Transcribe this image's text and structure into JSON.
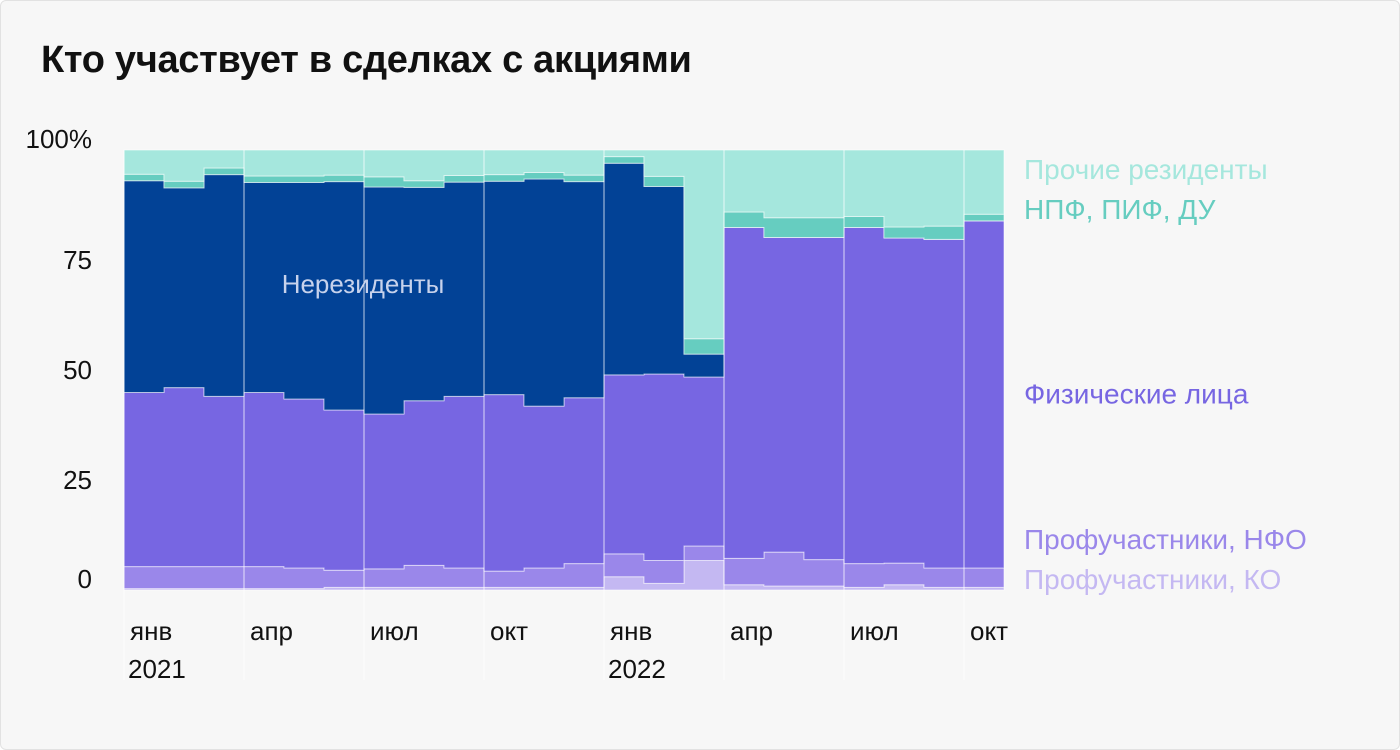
{
  "title": "Кто участвует в сделках с акциями",
  "colors": {
    "retail_ko": "#c4b8f2",
    "retail_nfo": "#9a87ea",
    "individuals": "#7766e2",
    "nonresidents": "#024296",
    "funds": "#66cdc0",
    "other": "#a5e7dd",
    "background": "#f7f7f7",
    "text": "#111111"
  },
  "chart_data": {
    "type": "area",
    "stacking": "percent",
    "step": true,
    "title": "Кто участвует в сделках с акциями",
    "ylim": [
      0,
      100
    ],
    "yticks": [
      0,
      25,
      50,
      75,
      100
    ],
    "ytick_labels": [
      "0",
      "25",
      "50",
      "75",
      "100%"
    ],
    "xtick_labels": [
      {
        "month": "янв",
        "year": "2021"
      },
      {
        "month": "апр",
        "year": ""
      },
      {
        "month": "июл",
        "year": ""
      },
      {
        "month": "окт",
        "year": ""
      },
      {
        "month": "янв",
        "year": "2022"
      },
      {
        "month": "апр",
        "year": ""
      },
      {
        "month": "июл",
        "year": ""
      },
      {
        "month": "окт",
        "year": ""
      }
    ],
    "periods": [
      "2021-01",
      "2021-02",
      "2021-03",
      "2021-04",
      "2021-05",
      "2021-06",
      "2021-07",
      "2021-08",
      "2021-09",
      "2021-10",
      "2021-11",
      "2021-12",
      "2022-01",
      "2022-02",
      "2022-03",
      "2022-04",
      "2022-05",
      "2022-06",
      "2022-07",
      "2022-08",
      "2022-09",
      "2022-10"
    ],
    "series": [
      {
        "name": "Профучастники, КО",
        "key": "retail_ko",
        "values": [
          0.3,
          0.3,
          0.3,
          0.3,
          0.3,
          0.6,
          0.6,
          0.6,
          0.6,
          0.6,
          0.6,
          0.6,
          3.0,
          1.5,
          6.7,
          1.2,
          0.9,
          0.9,
          0.6,
          1.2,
          0.6,
          0.6
        ]
      },
      {
        "name": "Профучастники, НФО",
        "key": "retail_nfo",
        "values": [
          5.0,
          5.0,
          5.0,
          5.0,
          4.7,
          3.9,
          4.2,
          5.0,
          4.4,
          3.7,
          4.4,
          5.4,
          5.2,
          5.2,
          3.3,
          6.0,
          7.7,
          6.0,
          5.4,
          4.9,
          4.4,
          4.4
        ]
      },
      {
        "name": "Физические лица",
        "key": "individuals",
        "values": [
          39.6,
          40.7,
          38.7,
          39.6,
          38.4,
          36.4,
          35.2,
          37.4,
          39.0,
          40.1,
          36.8,
          37.7,
          40.7,
          42.4,
          38.4,
          75.2,
          71.5,
          73.2,
          76.4,
          73.9,
          74.7,
          78.9
        ]
      },
      {
        "name": "Нерезиденты",
        "key": "nonresidents",
        "values": [
          48.1,
          45.4,
          50.4,
          47.7,
          49.2,
          51.9,
          51.6,
          48.5,
          48.7,
          48.5,
          51.6,
          49.1,
          48.1,
          42.6,
          5.2,
          0,
          0,
          0,
          0,
          0,
          0,
          0
        ]
      },
      {
        "name": "НПФ, ПИФ, ДУ",
        "key": "funds",
        "values": [
          1.5,
          1.5,
          1.5,
          1.5,
          1.5,
          1.5,
          2.3,
          1.5,
          1.5,
          1.5,
          1.5,
          1.5,
          1.5,
          2.3,
          3.5,
          3.5,
          4.5,
          4.5,
          2.5,
          2.5,
          3.0,
          1.5
        ]
      },
      {
        "name": "Прочие резиденты",
        "key": "other",
        "values": [
          5.5,
          7.1,
          4.1,
          5.9,
          5.9,
          5.7,
          6.1,
          7.0,
          5.8,
          5.6,
          5.1,
          5.7,
          1.5,
          6.0,
          42.9,
          14.1,
          15.4,
          15.4,
          15.1,
          17.5,
          17.3,
          14.6
        ]
      }
    ],
    "inner_label": "Нерезиденты",
    "grid": false,
    "legend": "right"
  }
}
